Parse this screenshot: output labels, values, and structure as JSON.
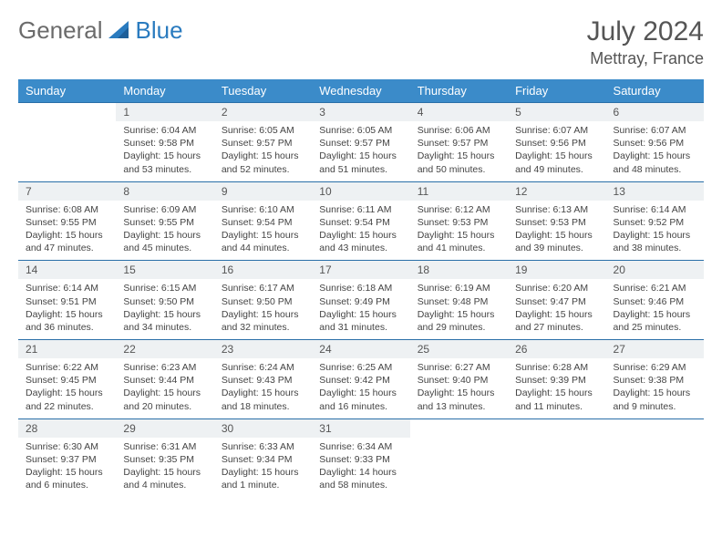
{
  "logo": {
    "word1": "General",
    "word2": "Blue"
  },
  "title": "July 2024",
  "location": "Mettray, France",
  "colors": {
    "header_bg": "#3b8bc9",
    "header_text": "#ffffff",
    "daynum_bg": "#eef1f3",
    "border": "#2a6fa8",
    "logo_gray": "#6b6b6b",
    "logo_blue": "#2a7bbf",
    "text": "#444444"
  },
  "weekdays": [
    "Sunday",
    "Monday",
    "Tuesday",
    "Wednesday",
    "Thursday",
    "Friday",
    "Saturday"
  ],
  "weeks": [
    [
      null,
      {
        "n": "1",
        "sr": "6:04 AM",
        "ss": "9:58 PM",
        "dl": "15 hours and 53 minutes."
      },
      {
        "n": "2",
        "sr": "6:05 AM",
        "ss": "9:57 PM",
        "dl": "15 hours and 52 minutes."
      },
      {
        "n": "3",
        "sr": "6:05 AM",
        "ss": "9:57 PM",
        "dl": "15 hours and 51 minutes."
      },
      {
        "n": "4",
        "sr": "6:06 AM",
        "ss": "9:57 PM",
        "dl": "15 hours and 50 minutes."
      },
      {
        "n": "5",
        "sr": "6:07 AM",
        "ss": "9:56 PM",
        "dl": "15 hours and 49 minutes."
      },
      {
        "n": "6",
        "sr": "6:07 AM",
        "ss": "9:56 PM",
        "dl": "15 hours and 48 minutes."
      }
    ],
    [
      {
        "n": "7",
        "sr": "6:08 AM",
        "ss": "9:55 PM",
        "dl": "15 hours and 47 minutes."
      },
      {
        "n": "8",
        "sr": "6:09 AM",
        "ss": "9:55 PM",
        "dl": "15 hours and 45 minutes."
      },
      {
        "n": "9",
        "sr": "6:10 AM",
        "ss": "9:54 PM",
        "dl": "15 hours and 44 minutes."
      },
      {
        "n": "10",
        "sr": "6:11 AM",
        "ss": "9:54 PM",
        "dl": "15 hours and 43 minutes."
      },
      {
        "n": "11",
        "sr": "6:12 AM",
        "ss": "9:53 PM",
        "dl": "15 hours and 41 minutes."
      },
      {
        "n": "12",
        "sr": "6:13 AM",
        "ss": "9:53 PM",
        "dl": "15 hours and 39 minutes."
      },
      {
        "n": "13",
        "sr": "6:14 AM",
        "ss": "9:52 PM",
        "dl": "15 hours and 38 minutes."
      }
    ],
    [
      {
        "n": "14",
        "sr": "6:14 AM",
        "ss": "9:51 PM",
        "dl": "15 hours and 36 minutes."
      },
      {
        "n": "15",
        "sr": "6:15 AM",
        "ss": "9:50 PM",
        "dl": "15 hours and 34 minutes."
      },
      {
        "n": "16",
        "sr": "6:17 AM",
        "ss": "9:50 PM",
        "dl": "15 hours and 32 minutes."
      },
      {
        "n": "17",
        "sr": "6:18 AM",
        "ss": "9:49 PM",
        "dl": "15 hours and 31 minutes."
      },
      {
        "n": "18",
        "sr": "6:19 AM",
        "ss": "9:48 PM",
        "dl": "15 hours and 29 minutes."
      },
      {
        "n": "19",
        "sr": "6:20 AM",
        "ss": "9:47 PM",
        "dl": "15 hours and 27 minutes."
      },
      {
        "n": "20",
        "sr": "6:21 AM",
        "ss": "9:46 PM",
        "dl": "15 hours and 25 minutes."
      }
    ],
    [
      {
        "n": "21",
        "sr": "6:22 AM",
        "ss": "9:45 PM",
        "dl": "15 hours and 22 minutes."
      },
      {
        "n": "22",
        "sr": "6:23 AM",
        "ss": "9:44 PM",
        "dl": "15 hours and 20 minutes."
      },
      {
        "n": "23",
        "sr": "6:24 AM",
        "ss": "9:43 PM",
        "dl": "15 hours and 18 minutes."
      },
      {
        "n": "24",
        "sr": "6:25 AM",
        "ss": "9:42 PM",
        "dl": "15 hours and 16 minutes."
      },
      {
        "n": "25",
        "sr": "6:27 AM",
        "ss": "9:40 PM",
        "dl": "15 hours and 13 minutes."
      },
      {
        "n": "26",
        "sr": "6:28 AM",
        "ss": "9:39 PM",
        "dl": "15 hours and 11 minutes."
      },
      {
        "n": "27",
        "sr": "6:29 AM",
        "ss": "9:38 PM",
        "dl": "15 hours and 9 minutes."
      }
    ],
    [
      {
        "n": "28",
        "sr": "6:30 AM",
        "ss": "9:37 PM",
        "dl": "15 hours and 6 minutes."
      },
      {
        "n": "29",
        "sr": "6:31 AM",
        "ss": "9:35 PM",
        "dl": "15 hours and 4 minutes."
      },
      {
        "n": "30",
        "sr": "6:33 AM",
        "ss": "9:34 PM",
        "dl": "15 hours and 1 minute."
      },
      {
        "n": "31",
        "sr": "6:34 AM",
        "ss": "9:33 PM",
        "dl": "14 hours and 58 minutes."
      },
      null,
      null,
      null
    ]
  ],
  "labels": {
    "sunrise": "Sunrise:",
    "sunset": "Sunset:",
    "daylight": "Daylight:"
  }
}
